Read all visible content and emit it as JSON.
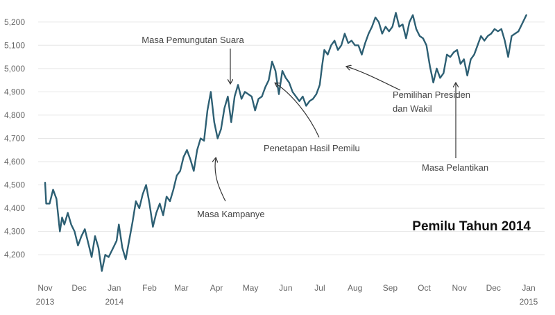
{
  "chart_data": {
    "type": "line",
    "title": "Pemilu Tahun 2014",
    "xlabel": "",
    "ylabel": "",
    "ylim": [
      4120,
      5250
    ],
    "y_ticks": [
      4200,
      4300,
      4400,
      4500,
      4600,
      4700,
      4800,
      4900,
      5000,
      5100,
      5200
    ],
    "y_tick_labels": [
      "4,200",
      "4,300",
      "4,400",
      "4,500",
      "4,600",
      "4,700",
      "4,800",
      "4,900",
      "5,000",
      "5,100",
      "5,200"
    ],
    "x_ticks": [
      {
        "date": "2013-11-01",
        "line1": "Nov",
        "line2": "2013"
      },
      {
        "date": "2013-12-01",
        "line1": "Dec",
        "line2": ""
      },
      {
        "date": "2014-01-01",
        "line1": "Jan",
        "line2": "2014"
      },
      {
        "date": "2014-02-01",
        "line1": "Feb",
        "line2": ""
      },
      {
        "date": "2014-03-01",
        "line1": "Mar",
        "line2": ""
      },
      {
        "date": "2014-04-01",
        "line1": "Apr",
        "line2": ""
      },
      {
        "date": "2014-05-01",
        "line1": "May",
        "line2": ""
      },
      {
        "date": "2014-06-01",
        "line1": "Jun",
        "line2": ""
      },
      {
        "date": "2014-07-01",
        "line1": "Jul",
        "line2": ""
      },
      {
        "date": "2014-08-01",
        "line1": "Aug",
        "line2": ""
      },
      {
        "date": "2014-09-01",
        "line1": "Sep",
        "line2": ""
      },
      {
        "date": "2014-10-01",
        "line1": "Oct",
        "line2": ""
      },
      {
        "date": "2014-11-01",
        "line1": "Nov",
        "line2": ""
      },
      {
        "date": "2014-12-01",
        "line1": "Dec",
        "line2": ""
      },
      {
        "date": "2015-01-01",
        "line1": "Jan",
        "line2": "2015"
      }
    ],
    "grid": true,
    "series": [
      {
        "name": "",
        "color": "#2d5f73",
        "points": [
          [
            "2013-11-01",
            4510
          ],
          [
            "2013-11-02",
            4420
          ],
          [
            "2013-11-05",
            4420
          ],
          [
            "2013-11-08",
            4480
          ],
          [
            "2013-11-11",
            4440
          ],
          [
            "2013-11-14",
            4300
          ],
          [
            "2013-11-16",
            4360
          ],
          [
            "2013-11-18",
            4330
          ],
          [
            "2013-11-21",
            4380
          ],
          [
            "2013-11-24",
            4330
          ],
          [
            "2013-11-27",
            4300
          ],
          [
            "2013-11-30",
            4240
          ],
          [
            "2013-12-03",
            4280
          ],
          [
            "2013-12-06",
            4310
          ],
          [
            "2013-12-09",
            4250
          ],
          [
            "2013-12-12",
            4190
          ],
          [
            "2013-12-15",
            4280
          ],
          [
            "2013-12-18",
            4230
          ],
          [
            "2013-12-21",
            4130
          ],
          [
            "2013-12-24",
            4200
          ],
          [
            "2013-12-27",
            4190
          ],
          [
            "2013-12-31",
            4230
          ],
          [
            "2014-01-03",
            4260
          ],
          [
            "2014-01-05",
            4330
          ],
          [
            "2014-01-08",
            4230
          ],
          [
            "2014-01-11",
            4180
          ],
          [
            "2014-01-14",
            4260
          ],
          [
            "2014-01-17",
            4340
          ],
          [
            "2014-01-20",
            4430
          ],
          [
            "2014-01-23",
            4400
          ],
          [
            "2014-01-26",
            4460
          ],
          [
            "2014-01-29",
            4500
          ],
          [
            "2014-02-01",
            4420
          ],
          [
            "2014-02-04",
            4320
          ],
          [
            "2014-02-07",
            4380
          ],
          [
            "2014-02-10",
            4420
          ],
          [
            "2014-02-13",
            4370
          ],
          [
            "2014-02-16",
            4450
          ],
          [
            "2014-02-19",
            4430
          ],
          [
            "2014-02-22",
            4480
          ],
          [
            "2014-02-25",
            4540
          ],
          [
            "2014-02-28",
            4560
          ],
          [
            "2014-03-03",
            4620
          ],
          [
            "2014-03-06",
            4650
          ],
          [
            "2014-03-09",
            4610
          ],
          [
            "2014-03-12",
            4560
          ],
          [
            "2014-03-15",
            4650
          ],
          [
            "2014-03-18",
            4700
          ],
          [
            "2014-03-21",
            4690
          ],
          [
            "2014-03-24",
            4820
          ],
          [
            "2014-03-27",
            4900
          ],
          [
            "2014-03-30",
            4770
          ],
          [
            "2014-04-02",
            4700
          ],
          [
            "2014-04-05",
            4740
          ],
          [
            "2014-04-08",
            4830
          ],
          [
            "2014-04-11",
            4880
          ],
          [
            "2014-04-14",
            4770
          ],
          [
            "2014-04-17",
            4880
          ],
          [
            "2014-04-20",
            4930
          ],
          [
            "2014-04-23",
            4870
          ],
          [
            "2014-04-26",
            4900
          ],
          [
            "2014-04-29",
            4890
          ],
          [
            "2014-05-02",
            4880
          ],
          [
            "2014-05-05",
            4820
          ],
          [
            "2014-05-08",
            4870
          ],
          [
            "2014-05-11",
            4880
          ],
          [
            "2014-05-14",
            4920
          ],
          [
            "2014-05-17",
            4950
          ],
          [
            "2014-05-20",
            5030
          ],
          [
            "2014-05-23",
            4990
          ],
          [
            "2014-05-26",
            4890
          ],
          [
            "2014-05-29",
            4990
          ],
          [
            "2014-06-01",
            4960
          ],
          [
            "2014-06-04",
            4940
          ],
          [
            "2014-06-07",
            4900
          ],
          [
            "2014-06-10",
            4880
          ],
          [
            "2014-06-13",
            4860
          ],
          [
            "2014-06-16",
            4880
          ],
          [
            "2014-06-19",
            4840
          ],
          [
            "2014-06-22",
            4860
          ],
          [
            "2014-06-25",
            4870
          ],
          [
            "2014-06-28",
            4890
          ],
          [
            "2014-07-01",
            4930
          ],
          [
            "2014-07-03",
            5010
          ],
          [
            "2014-07-05",
            5080
          ],
          [
            "2014-07-08",
            5060
          ],
          [
            "2014-07-11",
            5100
          ],
          [
            "2014-07-14",
            5120
          ],
          [
            "2014-07-17",
            5080
          ],
          [
            "2014-07-20",
            5100
          ],
          [
            "2014-07-23",
            5150
          ],
          [
            "2014-07-26",
            5110
          ],
          [
            "2014-07-29",
            5120
          ],
          [
            "2014-08-01",
            5100
          ],
          [
            "2014-08-04",
            5100
          ],
          [
            "2014-08-07",
            5060
          ],
          [
            "2014-08-10",
            5110
          ],
          [
            "2014-08-13",
            5150
          ],
          [
            "2014-08-16",
            5180
          ],
          [
            "2014-08-19",
            5220
          ],
          [
            "2014-08-22",
            5200
          ],
          [
            "2014-08-25",
            5150
          ],
          [
            "2014-08-28",
            5180
          ],
          [
            "2014-08-31",
            5160
          ],
          [
            "2014-09-03",
            5180
          ],
          [
            "2014-09-06",
            5240
          ],
          [
            "2014-09-09",
            5180
          ],
          [
            "2014-09-12",
            5190
          ],
          [
            "2014-09-15",
            5130
          ],
          [
            "2014-09-18",
            5200
          ],
          [
            "2014-09-21",
            5230
          ],
          [
            "2014-09-24",
            5170
          ],
          [
            "2014-09-27",
            5140
          ],
          [
            "2014-09-30",
            5130
          ],
          [
            "2014-10-03",
            5100
          ],
          [
            "2014-10-06",
            5010
          ],
          [
            "2014-10-09",
            4940
          ],
          [
            "2014-10-12",
            5000
          ],
          [
            "2014-10-15",
            4960
          ],
          [
            "2014-10-18",
            4980
          ],
          [
            "2014-10-21",
            5060
          ],
          [
            "2014-10-24",
            5050
          ],
          [
            "2014-10-27",
            5070
          ],
          [
            "2014-10-30",
            5080
          ],
          [
            "2014-11-02",
            5020
          ],
          [
            "2014-11-05",
            5040
          ],
          [
            "2014-11-08",
            4970
          ],
          [
            "2014-11-11",
            5040
          ],
          [
            "2014-11-14",
            5060
          ],
          [
            "2014-11-17",
            5100
          ],
          [
            "2014-11-20",
            5140
          ],
          [
            "2014-11-23",
            5120
          ],
          [
            "2014-11-26",
            5140
          ],
          [
            "2014-11-29",
            5150
          ],
          [
            "2014-12-02",
            5170
          ],
          [
            "2014-12-05",
            5160
          ],
          [
            "2014-12-08",
            5170
          ],
          [
            "2014-12-11",
            5120
          ],
          [
            "2014-12-14",
            5050
          ],
          [
            "2014-12-17",
            5140
          ],
          [
            "2014-12-20",
            5150
          ],
          [
            "2014-12-23",
            5160
          ],
          [
            "2014-12-26",
            5190
          ],
          [
            "2014-12-30",
            5230
          ]
        ]
      }
    ],
    "annotations": [
      {
        "text": "Masa Pemungutan Suara",
        "anchor": "middle"
      },
      {
        "text": "Penetapan Hasil Pemilu",
        "anchor": "start"
      },
      {
        "text": "Pemilihan Presiden",
        "anchor": "start"
      },
      {
        "text": "dan Wakil",
        "anchor": "start"
      },
      {
        "text": "Masa Kampanye",
        "anchor": "start"
      },
      {
        "text": "Masa Pelantikan",
        "anchor": "start"
      }
    ]
  }
}
